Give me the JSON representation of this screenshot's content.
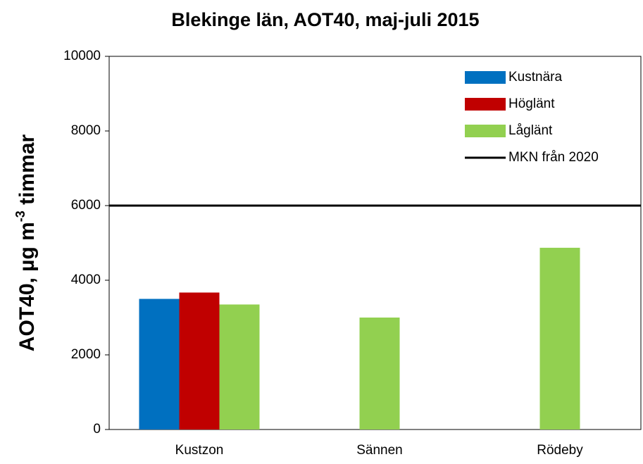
{
  "chart_data": {
    "type": "bar",
    "title": "Blekinge län, AOT40, maj-juli 2015",
    "ylabel": [
      "AOT40, µg m",
      "-3",
      " timmar"
    ],
    "categories": [
      "Kustzon",
      "Sännen",
      "Rödeby"
    ],
    "series": [
      {
        "name": "Kustnära",
        "color": "#0070c0",
        "values": [
          3500,
          null,
          null
        ]
      },
      {
        "name": "Höglänt",
        "color": "#c00000",
        "values": [
          3670,
          null,
          null
        ]
      },
      {
        "name": "Låglänt",
        "color": "#92d050",
        "values": [
          3350,
          3000,
          4870
        ]
      }
    ],
    "reference_lines": [
      {
        "name": "MKN från 2020",
        "value": 6000,
        "color": "#000000"
      }
    ],
    "ylim": [
      0,
      10000
    ],
    "yticks": [
      0,
      2000,
      4000,
      6000,
      8000,
      10000
    ],
    "legend": "top-right",
    "grid": false
  }
}
